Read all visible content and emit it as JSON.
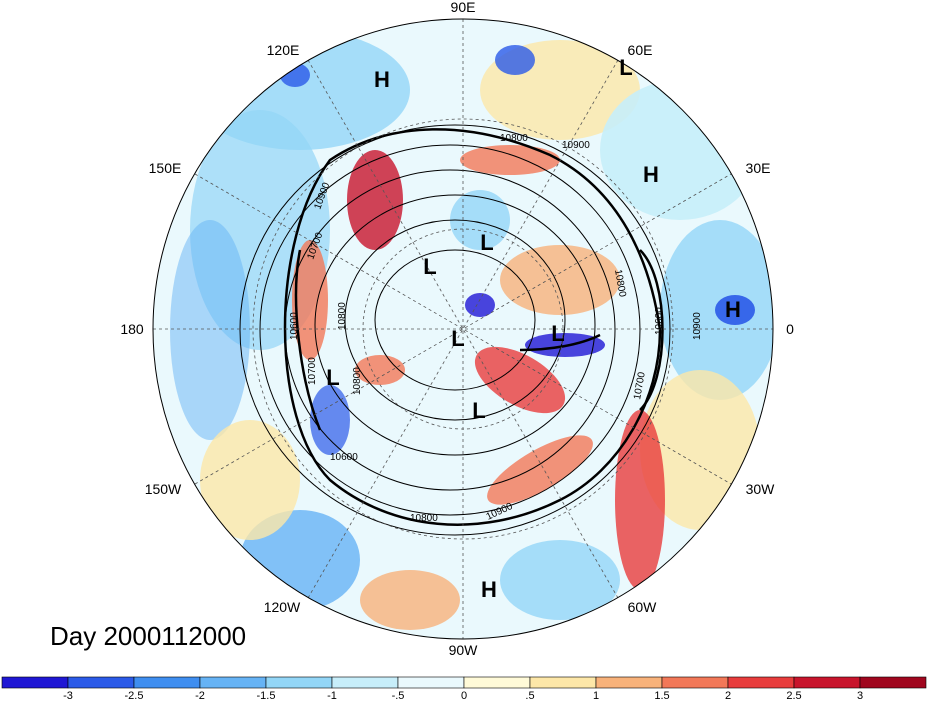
{
  "map": {
    "projection": "north-polar-stereographic",
    "longitude_labels": [
      "90E",
      "60E",
      "30E",
      "0",
      "30W",
      "60W",
      "90W",
      "120W",
      "150W",
      "180",
      "150E",
      "120E"
    ],
    "pressure_centers": [
      "L",
      "L",
      "L",
      "L",
      "L",
      "L",
      "H",
      "H",
      "H",
      "H",
      "L"
    ],
    "contour_labels": [
      "10800",
      "10900",
      "10900",
      "10700",
      "10800",
      "10600",
      "10700",
      "10600",
      "10800",
      "10900",
      "10800",
      "10600",
      "10700",
      "10800",
      "10900"
    ],
    "day_label": "Day 2000112000"
  },
  "colorbar": {
    "tick_labels": [
      "-3",
      "-2.5",
      "-2",
      "-1.5",
      "-1",
      "-.5",
      "0",
      ".5",
      "1",
      "1.5",
      "2",
      "2.5",
      "3"
    ],
    "colors": [
      "#1f17d4",
      "#2b5ae8",
      "#3f8ef0",
      "#66b3f5",
      "#93d6f7",
      "#c7eefa",
      "#eaf9fd",
      "#fffad8",
      "#fde7a8",
      "#f8b27a",
      "#f27858",
      "#e83c3c",
      "#c8142c",
      "#a0061e"
    ]
  }
}
